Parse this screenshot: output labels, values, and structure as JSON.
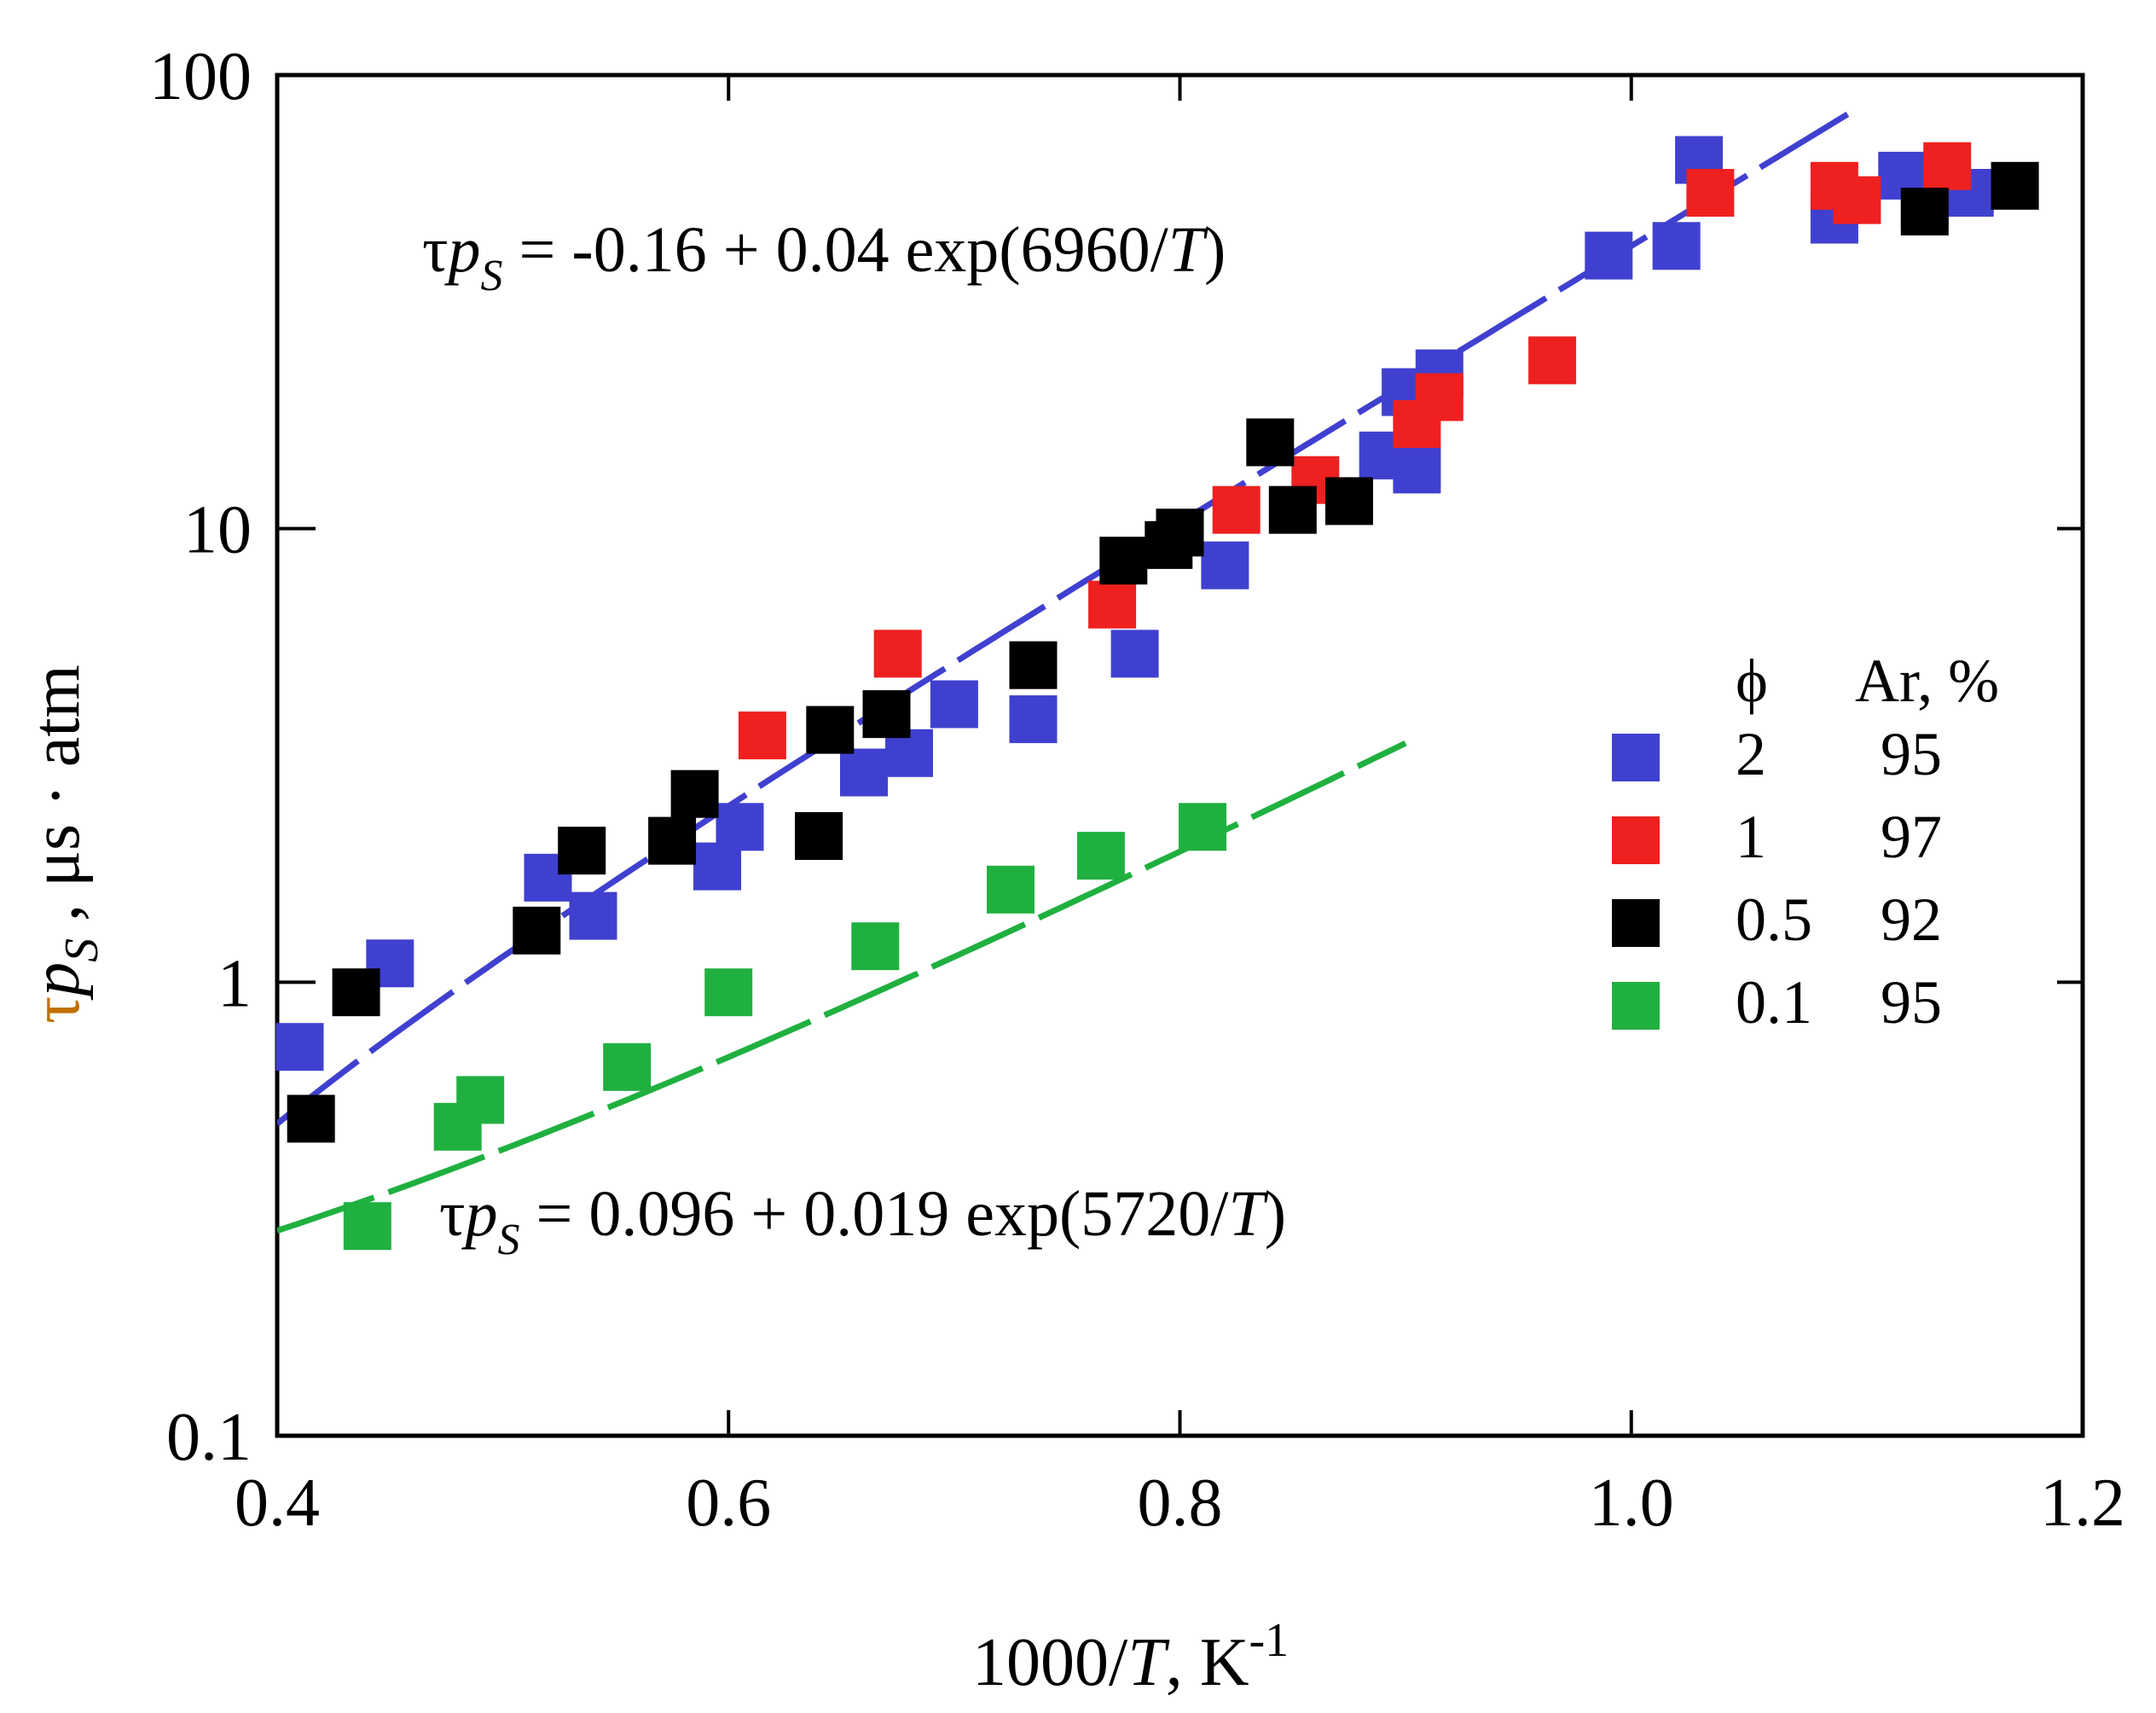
{
  "chart_data": {
    "type": "scatter",
    "title": "",
    "xlabel": {
      "prefix": "1000/",
      "var": "T",
      "mid": ", K",
      "sup": "-1"
    },
    "ylabel": {
      "tau": "τ",
      "p": "p",
      "sub": "S",
      "units": " , μs · atm",
      "color": "#c07000"
    },
    "xlim": [
      0.4,
      1.2
    ],
    "ylim": [
      0.1,
      100
    ],
    "yscale": "log",
    "x_ticks": [
      {
        "value": 0.4,
        "label": "0.4"
      },
      {
        "value": 0.6,
        "label": "0.6"
      },
      {
        "value": 0.8,
        "label": "0.8"
      },
      {
        "value": 1.0,
        "label": "1.0"
      },
      {
        "value": 1.2,
        "label": "1.2"
      }
    ],
    "y_ticks": [
      {
        "value": 0.1,
        "label": "0.1"
      },
      {
        "value": 1,
        "label": "1"
      },
      {
        "value": 10,
        "label": "10"
      },
      {
        "value": 100,
        "label": "100"
      }
    ],
    "legend": {
      "placement": "right-middle",
      "header_phi": "ϕ",
      "header_ar": "Ar, %",
      "entries": [
        {
          "phi": "2",
          "ar": "95",
          "color": "#4040d0"
        },
        {
          "phi": "1",
          "ar": "97",
          "color": "#ee2020"
        },
        {
          "phi": "0.5",
          "ar": "92",
          "color": "#000000"
        },
        {
          "phi": "0.1",
          "ar": "95",
          "color": "#20b040"
        }
      ]
    },
    "series": [
      {
        "name": "ϕ=2, Ar 95%",
        "color": "#4040d0",
        "points": [
          [
            0.41,
            0.72
          ],
          [
            0.45,
            1.1
          ],
          [
            0.52,
            1.7
          ],
          [
            0.54,
            1.4
          ],
          [
            0.595,
            1.8
          ],
          [
            0.605,
            2.2
          ],
          [
            0.66,
            2.9
          ],
          [
            0.68,
            3.2
          ],
          [
            0.7,
            4.1
          ],
          [
            0.735,
            3.8
          ],
          [
            0.78,
            5.3
          ],
          [
            0.82,
            8.3
          ],
          [
            0.89,
            14.5
          ],
          [
            0.905,
            13.5
          ],
          [
            0.9,
            20
          ],
          [
            0.915,
            22
          ],
          [
            0.99,
            40
          ],
          [
            1.02,
            42
          ],
          [
            1.03,
            65
          ],
          [
            1.09,
            48
          ],
          [
            1.12,
            60
          ],
          [
            1.13,
            52
          ],
          [
            1.15,
            55
          ]
        ]
      },
      {
        "name": "ϕ=1, Ar 97%",
        "color": "#ee2020",
        "points": [
          [
            0.615,
            3.5
          ],
          [
            0.675,
            5.3
          ],
          [
            0.77,
            6.8
          ],
          [
            0.825,
            11
          ],
          [
            0.86,
            12.8
          ],
          [
            0.905,
            17
          ],
          [
            0.915,
            19.5
          ],
          [
            0.965,
            23.5
          ],
          [
            1.035,
            55
          ],
          [
            1.09,
            57
          ],
          [
            1.1,
            53
          ],
          [
            1.14,
            63
          ]
        ]
      },
      {
        "name": "ϕ=0.5, Ar 92%",
        "color": "#000000",
        "points": [
          [
            0.415,
            0.5
          ],
          [
            0.435,
            0.95
          ],
          [
            0.515,
            1.3
          ],
          [
            0.535,
            1.95
          ],
          [
            0.575,
            2.05
          ],
          [
            0.585,
            2.6
          ],
          [
            0.64,
            2.1
          ],
          [
            0.645,
            3.6
          ],
          [
            0.67,
            3.9
          ],
          [
            0.735,
            5.0
          ],
          [
            0.775,
            8.5
          ],
          [
            0.795,
            9.2
          ],
          [
            0.8,
            9.8
          ],
          [
            0.84,
            15.5
          ],
          [
            0.85,
            11
          ],
          [
            0.875,
            11.5
          ],
          [
            1.13,
            50
          ],
          [
            1.17,
            57
          ]
        ]
      },
      {
        "name": "ϕ=0.1, Ar 95%",
        "color": "#20b040",
        "points": [
          [
            0.44,
            0.29
          ],
          [
            0.48,
            0.48
          ],
          [
            0.49,
            0.55
          ],
          [
            0.555,
            0.65
          ],
          [
            0.6,
            0.95
          ],
          [
            0.665,
            1.2
          ],
          [
            0.725,
            1.6
          ],
          [
            0.765,
            1.9
          ],
          [
            0.81,
            2.2
          ]
        ]
      }
    ],
    "fits": [
      {
        "color": "#4040d0",
        "x_range": [
          0.4,
          1.1
        ],
        "a": -0.16,
        "b": 0.04,
        "c": 6960,
        "equation": {
          "lhs_tau": "τ",
          "lhs_p": "p",
          "lhs_sub": "S",
          "rhs_pre": " = -0.16 + 0.04 exp(6960/",
          "rhs_var": "T",
          "rhs_post": ")"
        }
      },
      {
        "color": "#20b040",
        "x_range": [
          0.4,
          0.9
        ],
        "a": 0.096,
        "b": 0.019,
        "c": 5720,
        "equation": {
          "lhs_tau": "τ",
          "lhs_p": "p",
          "lhs_sub": "S",
          "rhs_pre": " = 0.096 + 0.019 exp(5720/",
          "rhs_var": "T",
          "rhs_post": ")"
        }
      }
    ]
  }
}
